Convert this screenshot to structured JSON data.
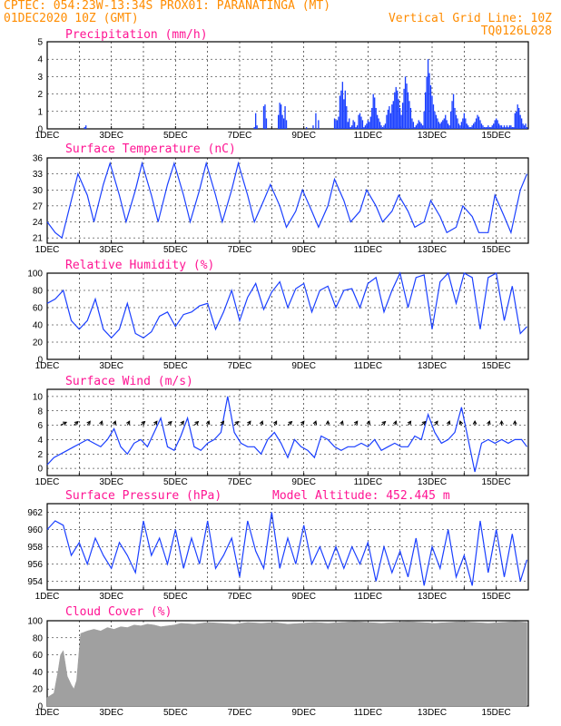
{
  "header": {
    "line1_left": "CPTEC:   054:23W-13:34S  PROX01: PARANATINGA (MT)",
    "line2_left": "01DEC2020 10Z (GMT)",
    "line2_right": "Vertical Grid Line: 10Z",
    "line3_right": "TQ0126L028"
  },
  "colors": {
    "header": "#ff8c00",
    "panel_title": "#ff1493",
    "line": "#1a3fff",
    "cloud": "#a0a0a0"
  },
  "x_tick_labels": [
    "1DEC",
    "3DEC",
    "5DEC",
    "7DEC",
    "9DEC",
    "11DEC",
    "13DEC",
    "15DEC"
  ],
  "chart_data": [
    {
      "type": "bar",
      "title": "Precipitation  (mm/h)",
      "ylim": [
        0,
        5
      ],
      "yticks": [
        0,
        1,
        2,
        3,
        4,
        5
      ],
      "x_unit": "hours since 01DEC2020 10Z",
      "x": [
        28,
        29,
        155,
        156,
        157,
        162,
        163,
        164,
        173,
        174,
        175,
        176,
        177,
        178,
        179,
        194,
        199,
        201,
        203,
        215,
        216,
        217,
        218,
        219,
        220,
        221,
        222,
        223,
        224,
        225,
        226,
        227,
        228,
        229,
        230,
        231,
        232,
        233,
        234,
        235,
        236,
        237,
        238,
        239,
        240,
        241,
        242,
        243,
        244,
        245,
        246,
        247,
        248,
        249,
        250,
        251,
        252,
        253,
        254,
        255,
        256,
        257,
        258,
        259,
        260,
        261,
        262,
        263,
        264,
        265,
        266,
        267,
        268,
        269,
        270,
        271,
        272,
        273,
        274,
        275,
        276,
        277,
        278,
        279,
        280,
        281,
        282,
        283,
        284,
        285,
        286,
        287,
        288,
        289,
        290,
        291,
        292,
        293,
        294,
        295,
        296,
        297,
        298,
        299,
        300,
        301,
        302,
        303,
        304,
        305,
        306,
        307,
        308,
        309,
        310,
        311,
        312,
        313,
        314,
        315,
        316,
        317,
        318,
        319,
        320,
        321,
        322,
        323,
        324,
        325,
        326,
        327,
        328,
        329,
        330,
        331,
        332,
        333,
        334,
        335,
        336,
        337,
        338,
        339,
        340,
        341,
        342,
        343,
        344,
        345,
        346,
        347,
        348,
        349,
        350,
        351,
        352,
        353,
        354,
        355,
        356,
        357,
        358,
        359
      ],
      "values": [
        0.1,
        0.2,
        0.1,
        0.9,
        0.2,
        1.3,
        1.4,
        0.6,
        0.8,
        1.5,
        1.4,
        0.8,
        0.6,
        1.3,
        0.5,
        0.1,
        0.2,
        0.9,
        0.5,
        0.6,
        0.5,
        0.5,
        0.7,
        1.9,
        2.2,
        2.7,
        1.7,
        2.2,
        1.3,
        0.4,
        0.6,
        0.1,
        0.2,
        0.5,
        0.4,
        0.1,
        0.2,
        0.8,
        0.9,
        0.7,
        0.5,
        0.1,
        0.2,
        0.3,
        0.5,
        0.4,
        0.7,
        1.2,
        2.0,
        1.8,
        1.2,
        0.8,
        0.6,
        0.4,
        0.2,
        0.1,
        0.2,
        0.3,
        0.8,
        1.1,
        1.3,
        0.9,
        1.4,
        1.6,
        2.1,
        2.4,
        2.2,
        1.7,
        1.2,
        0.8,
        1.5,
        2.3,
        3.0,
        2.6,
        2.1,
        1.6,
        1.2,
        0.6,
        0.4,
        0.1,
        0.2,
        0.3,
        0.5,
        0.4,
        0.3,
        0.2,
        1.0,
        2.1,
        3.0,
        4.0,
        3.2,
        2.5,
        1.9,
        1.4,
        1.0,
        0.8,
        0.6,
        0.4,
        0.3,
        0.4,
        0.5,
        0.6,
        0.8,
        0.5,
        0.3,
        0.2,
        1.0,
        1.6,
        2.0,
        1.2,
        0.8,
        0.6,
        0.3,
        0.2,
        0.4,
        0.6,
        0.9,
        0.6,
        0.3,
        0.2,
        0.1,
        0.1,
        0.2,
        0.3,
        0.4,
        0.6,
        0.8,
        0.7,
        0.5,
        0.3,
        0.2,
        0.1,
        0.1,
        0.1,
        0.2,
        0.1,
        0.1,
        0.2,
        0.3,
        0.5,
        0.6,
        0.5,
        0.3,
        0.2,
        0.2,
        0.1,
        0.2,
        0.1,
        0.2,
        0.1,
        0.2,
        0.2,
        0.1,
        0.1,
        0.9,
        1.0,
        1.4,
        1.2,
        0.8,
        0.6,
        0.3,
        0.2,
        0.3,
        0.1
      ]
    },
    {
      "type": "line",
      "title": "Surface Temperature (nC)",
      "ylim": [
        20,
        36
      ],
      "yticks": [
        21,
        24,
        27,
        30,
        33,
        36
      ],
      "x_unit": "hours since 01DEC2020 10Z",
      "x": [
        0,
        6,
        11,
        18,
        23,
        30,
        35,
        42,
        47,
        54,
        59,
        66,
        71,
        78,
        83,
        90,
        95,
        102,
        107,
        114,
        119,
        126,
        131,
        138,
        143,
        150,
        155,
        162,
        167,
        174,
        179,
        186,
        191,
        198,
        203,
        210,
        215,
        222,
        227,
        234,
        239,
        246,
        251,
        258,
        263,
        270,
        275,
        282,
        287,
        294,
        299,
        306,
        311,
        318,
        323,
        330,
        335,
        342,
        347,
        354,
        359
      ],
      "values": [
        24,
        22,
        21,
        28,
        33,
        29,
        24,
        31,
        35,
        29,
        24,
        30,
        35,
        29,
        24,
        31,
        35,
        29,
        24,
        30,
        35,
        29,
        24,
        30,
        35,
        29,
        24,
        28,
        31,
        27,
        23,
        26,
        30,
        26,
        23,
        27,
        32,
        28,
        24,
        26,
        30,
        27,
        24,
        26,
        29,
        26,
        23,
        24,
        28,
        25,
        22,
        23,
        27,
        25,
        22,
        22,
        29,
        25,
        22,
        30,
        33
      ]
    },
    {
      "type": "line",
      "title": "Relative Humidity (%)",
      "ylim": [
        0,
        100
      ],
      "yticks": [
        0,
        20,
        40,
        60,
        80,
        100
      ],
      "x_unit": "hours since 01DEC2020 10Z",
      "x": [
        0,
        6,
        12,
        18,
        24,
        30,
        36,
        42,
        48,
        54,
        60,
        66,
        72,
        78,
        84,
        90,
        96,
        102,
        108,
        114,
        120,
        126,
        132,
        138,
        144,
        150,
        156,
        162,
        168,
        174,
        180,
        186,
        192,
        198,
        204,
        210,
        216,
        222,
        228,
        234,
        240,
        246,
        252,
        258,
        264,
        270,
        276,
        282,
        288,
        294,
        300,
        306,
        312,
        318,
        324,
        330,
        336,
        342,
        348,
        354,
        359
      ],
      "values": [
        65,
        70,
        80,
        45,
        35,
        45,
        70,
        35,
        25,
        35,
        65,
        30,
        25,
        32,
        50,
        55,
        38,
        52,
        55,
        62,
        65,
        35,
        55,
        80,
        45,
        72,
        88,
        58,
        78,
        90,
        60,
        82,
        88,
        55,
        80,
        85,
        60,
        80,
        82,
        60,
        88,
        95,
        55,
        80,
        100,
        60,
        95,
        98,
        35,
        90,
        100,
        65,
        100,
        95,
        35,
        95,
        100,
        45,
        85,
        30,
        38
      ]
    },
    {
      "type": "line",
      "title": "Surface Wind (m/s)",
      "ylim": [
        -1,
        11
      ],
      "yticks": [
        0,
        2,
        4,
        6,
        8,
        10
      ],
      "x_unit": "hours since 01DEC2020 10Z",
      "x": [
        0,
        5,
        10,
        15,
        20,
        25,
        30,
        35,
        40,
        45,
        50,
        55,
        60,
        65,
        70,
        75,
        80,
        85,
        90,
        95,
        100,
        105,
        110,
        115,
        120,
        125,
        130,
        135,
        140,
        145,
        150,
        155,
        160,
        165,
        170,
        175,
        180,
        185,
        190,
        195,
        200,
        205,
        210,
        215,
        220,
        225,
        230,
        235,
        240,
        245,
        250,
        255,
        260,
        265,
        270,
        275,
        280,
        285,
        290,
        295,
        300,
        305,
        310,
        315,
        320,
        325,
        330,
        335,
        340,
        345,
        350,
        355,
        359
      ],
      "values": [
        0.5,
        1.5,
        2.0,
        2.5,
        3.0,
        3.5,
        4.0,
        3.5,
        3.0,
        4.0,
        5.5,
        3.0,
        2.0,
        3.5,
        4.0,
        3.0,
        5.0,
        7.0,
        3.0,
        2.5,
        4.5,
        7.0,
        3.0,
        2.5,
        3.5,
        4.0,
        5.0,
        10.0,
        5.0,
        3.5,
        3.0,
        3.0,
        2.0,
        4.0,
        5.0,
        3.5,
        1.5,
        4.0,
        3.0,
        2.5,
        1.5,
        4.5,
        4.0,
        3.0,
        2.5,
        3.0,
        3.0,
        3.5,
        3.0,
        4.0,
        2.5,
        3.0,
        3.5,
        3.0,
        3.0,
        4.5,
        4.0,
        7.5,
        5.0,
        3.5,
        4.0,
        5.0,
        8.5,
        4.0,
        -0.5,
        3.5,
        4.0,
        3.5,
        4.0,
        3.5,
        4.0,
        4.0,
        3.0
      ],
      "arrows_x": [
        10,
        20,
        30,
        40,
        50,
        60,
        70,
        80,
        90,
        100,
        110,
        120,
        130,
        140,
        150,
        160,
        170,
        180,
        190,
        200,
        210,
        220,
        230,
        240,
        250,
        260,
        270,
        280,
        290,
        300,
        310,
        320,
        330,
        340,
        350
      ],
      "arrows_dir_deg": [
        45,
        60,
        70,
        80,
        80,
        75,
        60,
        70,
        60,
        70,
        60,
        80,
        70,
        60,
        70,
        80,
        75,
        60,
        70,
        80,
        90,
        80,
        70,
        80,
        60,
        80,
        70,
        60,
        70,
        80,
        100,
        90,
        80,
        90,
        90
      ]
    },
    {
      "type": "line",
      "title": "Surface Pressure (hPa)",
      "annotation": "Model Altitude: 452.445  m",
      "ylim": [
        953,
        963
      ],
      "yticks": [
        954,
        956,
        958,
        960,
        962
      ],
      "x_unit": "hours since 01DEC2020 10Z",
      "x": [
        0,
        6,
        12,
        18,
        24,
        30,
        36,
        42,
        48,
        54,
        60,
        66,
        72,
        78,
        84,
        90,
        96,
        102,
        108,
        114,
        120,
        126,
        132,
        138,
        144,
        150,
        156,
        162,
        168,
        174,
        180,
        186,
        192,
        198,
        204,
        210,
        216,
        222,
        228,
        234,
        240,
        246,
        252,
        258,
        264,
        270,
        276,
        282,
        288,
        294,
        300,
        306,
        312,
        318,
        324,
        330,
        336,
        342,
        348,
        354,
        359
      ],
      "values": [
        960,
        961,
        960.5,
        957,
        958.5,
        956,
        959,
        957,
        955.5,
        958.5,
        957,
        955,
        961,
        957,
        959,
        956,
        960,
        955.5,
        959,
        956,
        961,
        955.5,
        957,
        959,
        954.5,
        961,
        957.5,
        955.5,
        962,
        955.5,
        959,
        956,
        960.5,
        956,
        958,
        955.5,
        958,
        955.5,
        958,
        956,
        958.5,
        954,
        958,
        955,
        957.5,
        954.5,
        959,
        953.5,
        958,
        955.5,
        960,
        954.5,
        957,
        953.5,
        961,
        955,
        960,
        954.5,
        959.5,
        954,
        956.5
      ]
    },
    {
      "type": "area",
      "title": "Cloud Cover (%)",
      "ylim": [
        0,
        100
      ],
      "yticks": [
        0,
        20,
        40,
        60,
        80,
        100
      ],
      "x_unit": "hours since 01DEC2020 10Z",
      "x": [
        0,
        5,
        8,
        10,
        12,
        15,
        18,
        20,
        22,
        25,
        30,
        35,
        40,
        45,
        50,
        55,
        60,
        65,
        70,
        75,
        80,
        85,
        90,
        95,
        100,
        110,
        120,
        130,
        140,
        150,
        160,
        170,
        180,
        190,
        200,
        210,
        220,
        230,
        240,
        250,
        260,
        270,
        280,
        290,
        300,
        310,
        320,
        330,
        340,
        350,
        359
      ],
      "values": [
        10,
        15,
        40,
        60,
        65,
        35,
        25,
        20,
        30,
        85,
        88,
        90,
        88,
        92,
        90,
        93,
        92,
        95,
        94,
        96,
        95,
        93,
        94,
        95,
        97,
        96,
        98,
        97,
        96,
        98,
        97,
        98,
        96,
        97,
        98,
        97,
        98,
        99,
        98,
        97,
        98,
        99,
        98,
        97,
        98,
        99,
        98,
        97,
        98,
        99,
        98
      ]
    }
  ]
}
